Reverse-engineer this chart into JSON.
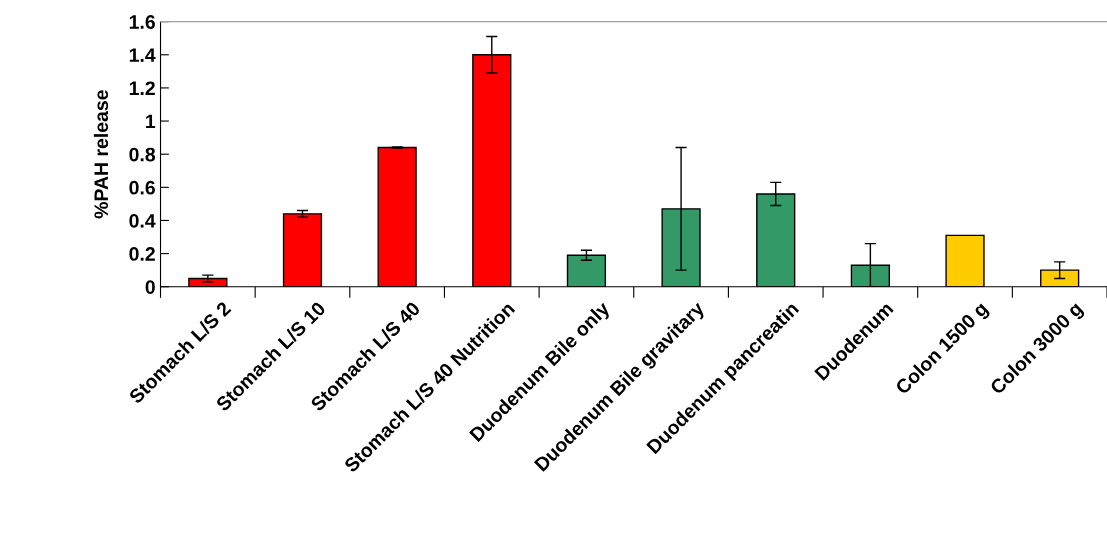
{
  "chart_data": {
    "type": "bar",
    "ylabel": "%PAH release",
    "categories": [
      "Stomach L/S 2",
      "Stomach L/S 10",
      "Stomach L/S 40",
      "Stomach L/S 40 Nutrition",
      "Duodenum Bile only",
      "Duodenum Bile gravitary",
      "Duodenum pancreatin",
      "Duodenum",
      "Colon 1500 g",
      "Colon 3000 g"
    ],
    "values": [
      0.05,
      0.44,
      0.84,
      1.4,
      0.19,
      0.47,
      0.56,
      0.13,
      0.31,
      0.1
    ],
    "errors": [
      0.02,
      0.02,
      0.003,
      0.11,
      0.03,
      0.37,
      0.07,
      0.13,
      null,
      0.05
    ],
    "colors": [
      "#ff0000",
      "#ff0000",
      "#ff0000",
      "#ff0000",
      "#339966",
      "#339966",
      "#339966",
      "#339966",
      "#ffcc00",
      "#ffcc00"
    ],
    "ylim": [
      0,
      1.6
    ],
    "yticks": [
      0,
      0.2,
      0.4,
      0.6,
      0.8,
      1,
      1.2,
      1.4,
      1.6
    ],
    "grid": false,
    "legend": false
  }
}
